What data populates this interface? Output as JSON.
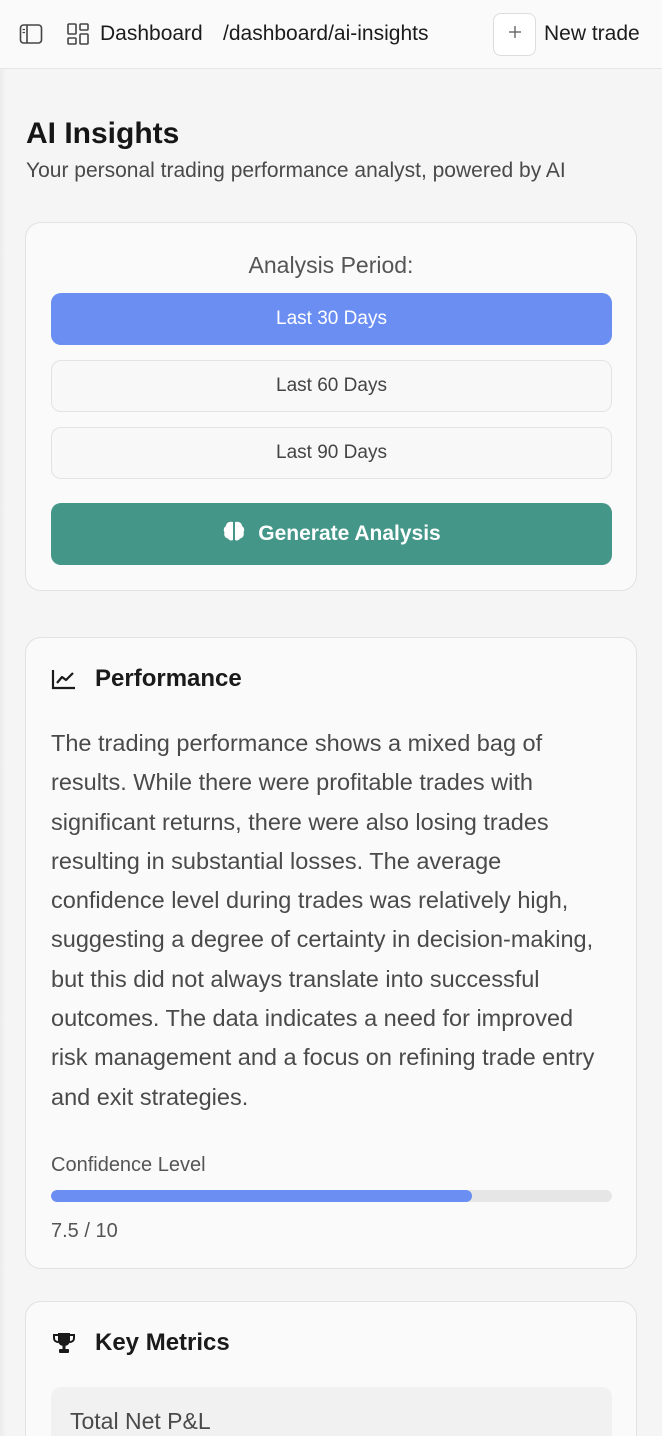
{
  "header": {
    "breadcrumb_root": "Dashboard",
    "breadcrumb_path": "/dashboard/ai-insights",
    "new_trade_label": "New trade",
    "icons": [
      "sidebar-toggle-icon",
      "dashboard-grid-icon",
      "plus-icon"
    ]
  },
  "page": {
    "title": "AI Insights",
    "subtitle": "Your personal trading performance analyst, powered by AI"
  },
  "period": {
    "label": "Analysis Period:",
    "options": [
      "Last 30 Days",
      "Last 60 Days",
      "Last 90 Days"
    ],
    "selected": "Last 30 Days",
    "generate_label": "Generate Analysis"
  },
  "performance": {
    "title": "Performance",
    "text": "The trading performance shows a mixed bag of results. While there were profitable trades with significant returns, there were also losing trades resulting in substantial losses. The average confidence level during trades was relatively high, suggesting a degree of certainty in decision-making, but this did not always translate into successful outcomes. The data indicates a need for improved risk management and a focus on refining trade entry and exit strategies.",
    "confidence_label": "Confidence Level",
    "confidence_value": 7.5,
    "confidence_max": 10,
    "confidence_display": "7.5 / 10"
  },
  "metrics": {
    "title": "Key Metrics",
    "items": [
      {
        "label": "Total Net P&L"
      }
    ]
  },
  "colors": {
    "accent_blue": "#6b8ef3",
    "accent_green": "#439688"
  }
}
